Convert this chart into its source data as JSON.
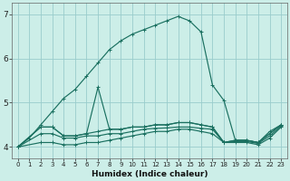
{
  "xlabel": "Humidex (Indice chaleur)",
  "bg_color": "#cceee8",
  "grid_color": "#99cccc",
  "line_color": "#1a7060",
  "xlim": [
    -0.5,
    23.5
  ],
  "ylim": [
    3.75,
    7.25
  ],
  "xticks": [
    0,
    1,
    2,
    3,
    4,
    5,
    6,
    7,
    8,
    9,
    10,
    11,
    12,
    13,
    14,
    15,
    16,
    17,
    18,
    19,
    20,
    21,
    22,
    23
  ],
  "yticks": [
    4,
    5,
    6,
    7
  ],
  "lines": [
    {
      "x": [
        0,
        1,
        2,
        3,
        4,
        5,
        6,
        7,
        8,
        9,
        10,
        11,
        12,
        13,
        14,
        15,
        16,
        17,
        18,
        19,
        20,
        21,
        22,
        23
      ],
      "y": [
        4.0,
        4.2,
        4.5,
        4.8,
        5.1,
        5.3,
        5.6,
        5.9,
        6.2,
        6.4,
        6.55,
        6.65,
        6.75,
        6.85,
        6.95,
        6.85,
        6.6,
        5.4,
        5.05,
        4.15,
        4.15,
        4.1,
        4.35,
        4.5
      ]
    },
    {
      "x": [
        0,
        2,
        3,
        4,
        5,
        6,
        7,
        8,
        9,
        10,
        11,
        12,
        13,
        14,
        15,
        16,
        17,
        18,
        19,
        20,
        21,
        22,
        23
      ],
      "y": [
        4.0,
        4.45,
        4.45,
        4.25,
        4.25,
        4.3,
        5.35,
        4.4,
        4.4,
        4.45,
        4.45,
        4.5,
        4.5,
        4.55,
        4.55,
        4.5,
        4.45,
        4.1,
        4.15,
        4.15,
        4.1,
        4.3,
        4.5
      ]
    },
    {
      "x": [
        0,
        2,
        3,
        4,
        5,
        6,
        7,
        8,
        9,
        10,
        11,
        12,
        13,
        14,
        15,
        16,
        17,
        18,
        19,
        20,
        21,
        22,
        23
      ],
      "y": [
        4.0,
        4.45,
        4.45,
        4.25,
        4.25,
        4.3,
        4.35,
        4.4,
        4.4,
        4.45,
        4.45,
        4.5,
        4.5,
        4.55,
        4.55,
        4.5,
        4.45,
        4.1,
        4.15,
        4.15,
        4.1,
        4.3,
        4.5
      ]
    },
    {
      "x": [
        0,
        2,
        3,
        4,
        5,
        6,
        7,
        8,
        9,
        10,
        11,
        12,
        13,
        14,
        15,
        16,
        17,
        18,
        19,
        20,
        21,
        22,
        23
      ],
      "y": [
        4.0,
        4.1,
        4.1,
        4.05,
        4.05,
        4.1,
        4.1,
        4.15,
        4.2,
        4.25,
        4.3,
        4.35,
        4.35,
        4.4,
        4.4,
        4.35,
        4.3,
        4.1,
        4.1,
        4.1,
        4.05,
        4.2,
        4.45
      ]
    },
    {
      "x": [
        0,
        2,
        3,
        4,
        5,
        6,
        7,
        8,
        9,
        10,
        11,
        12,
        13,
        14,
        15,
        16,
        17,
        18,
        19,
        20,
        21,
        22,
        23
      ],
      "y": [
        4.0,
        4.3,
        4.3,
        4.2,
        4.2,
        4.25,
        4.25,
        4.3,
        4.3,
        4.35,
        4.4,
        4.42,
        4.43,
        4.45,
        4.45,
        4.42,
        4.4,
        4.1,
        4.12,
        4.12,
        4.08,
        4.25,
        4.47
      ]
    }
  ]
}
